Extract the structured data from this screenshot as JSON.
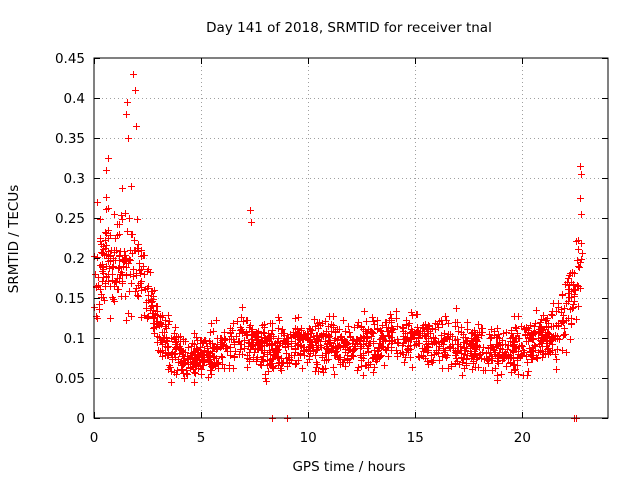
{
  "chart_data": {
    "type": "scatter",
    "title": "Day 141 of 2018, SRMTID for receiver tnal",
    "xlabel": "GPS time / hours",
    "ylabel": "SRMTID / TECUs",
    "xlim": [
      0,
      24
    ],
    "ylim": [
      0,
      0.45
    ],
    "xticks": [
      0,
      5,
      10,
      15,
      20
    ],
    "xtick_labels": [
      "0",
      "5",
      "10",
      "15",
      "20"
    ],
    "yticks": [
      0,
      0.05,
      0.1,
      0.15,
      0.2,
      0.25,
      0.3,
      0.35,
      0.4,
      0.45
    ],
    "ytick_labels": [
      "0",
      "0.05",
      "0.1",
      "0.15",
      "0.2",
      "0.25",
      "0.3",
      "0.35",
      "0.4",
      "0.45"
    ],
    "grid": true,
    "marker": "+",
    "marker_color": "#ff0000",
    "series": [
      {
        "name": "SRMTID",
        "profile": {
          "x": [
            0.0,
            0.5,
            1.0,
            1.5,
            2.0,
            2.5,
            3.0,
            3.5,
            4.0,
            5.0,
            6.0,
            7.0,
            8.0,
            9.0,
            10.0,
            12.0,
            14.0,
            16.0,
            18.0,
            19.0,
            20.0,
            21.0,
            21.5,
            22.0,
            22.5,
            22.8
          ],
          "y_mean": [
            0.17,
            0.2,
            0.19,
            0.2,
            0.2,
            0.15,
            0.11,
            0.09,
            0.075,
            0.08,
            0.09,
            0.1,
            0.085,
            0.09,
            0.095,
            0.09,
            0.1,
            0.095,
            0.085,
            0.085,
            0.09,
            0.1,
            0.11,
            0.13,
            0.16,
            0.19
          ],
          "y_spread": [
            0.06,
            0.06,
            0.06,
            0.06,
            0.06,
            0.04,
            0.035,
            0.03,
            0.025,
            0.025,
            0.03,
            0.03,
            0.03,
            0.03,
            0.03,
            0.03,
            0.03,
            0.03,
            0.03,
            0.03,
            0.03,
            0.035,
            0.04,
            0.05,
            0.05,
            0.06
          ]
        },
        "peaks": [
          {
            "x": 0.15,
            "y": 0.27
          },
          {
            "x": 0.55,
            "y": 0.31
          },
          {
            "x": 0.65,
            "y": 0.325
          },
          {
            "x": 1.5,
            "y": 0.38
          },
          {
            "x": 1.55,
            "y": 0.395
          },
          {
            "x": 1.6,
            "y": 0.35
          },
          {
            "x": 1.75,
            "y": 0.29
          },
          {
            "x": 1.82,
            "y": 0.43
          },
          {
            "x": 1.9,
            "y": 0.41
          },
          {
            "x": 1.95,
            "y": 0.365
          },
          {
            "x": 7.3,
            "y": 0.26
          },
          {
            "x": 7.35,
            "y": 0.245
          },
          {
            "x": 22.7,
            "y": 0.315
          },
          {
            "x": 22.75,
            "y": 0.305
          },
          {
            "x": 22.7,
            "y": 0.275
          },
          {
            "x": 22.72,
            "y": 0.255
          }
        ],
        "zeros_x": [
          8.3,
          9.0,
          22.4,
          22.5
        ]
      }
    ]
  }
}
